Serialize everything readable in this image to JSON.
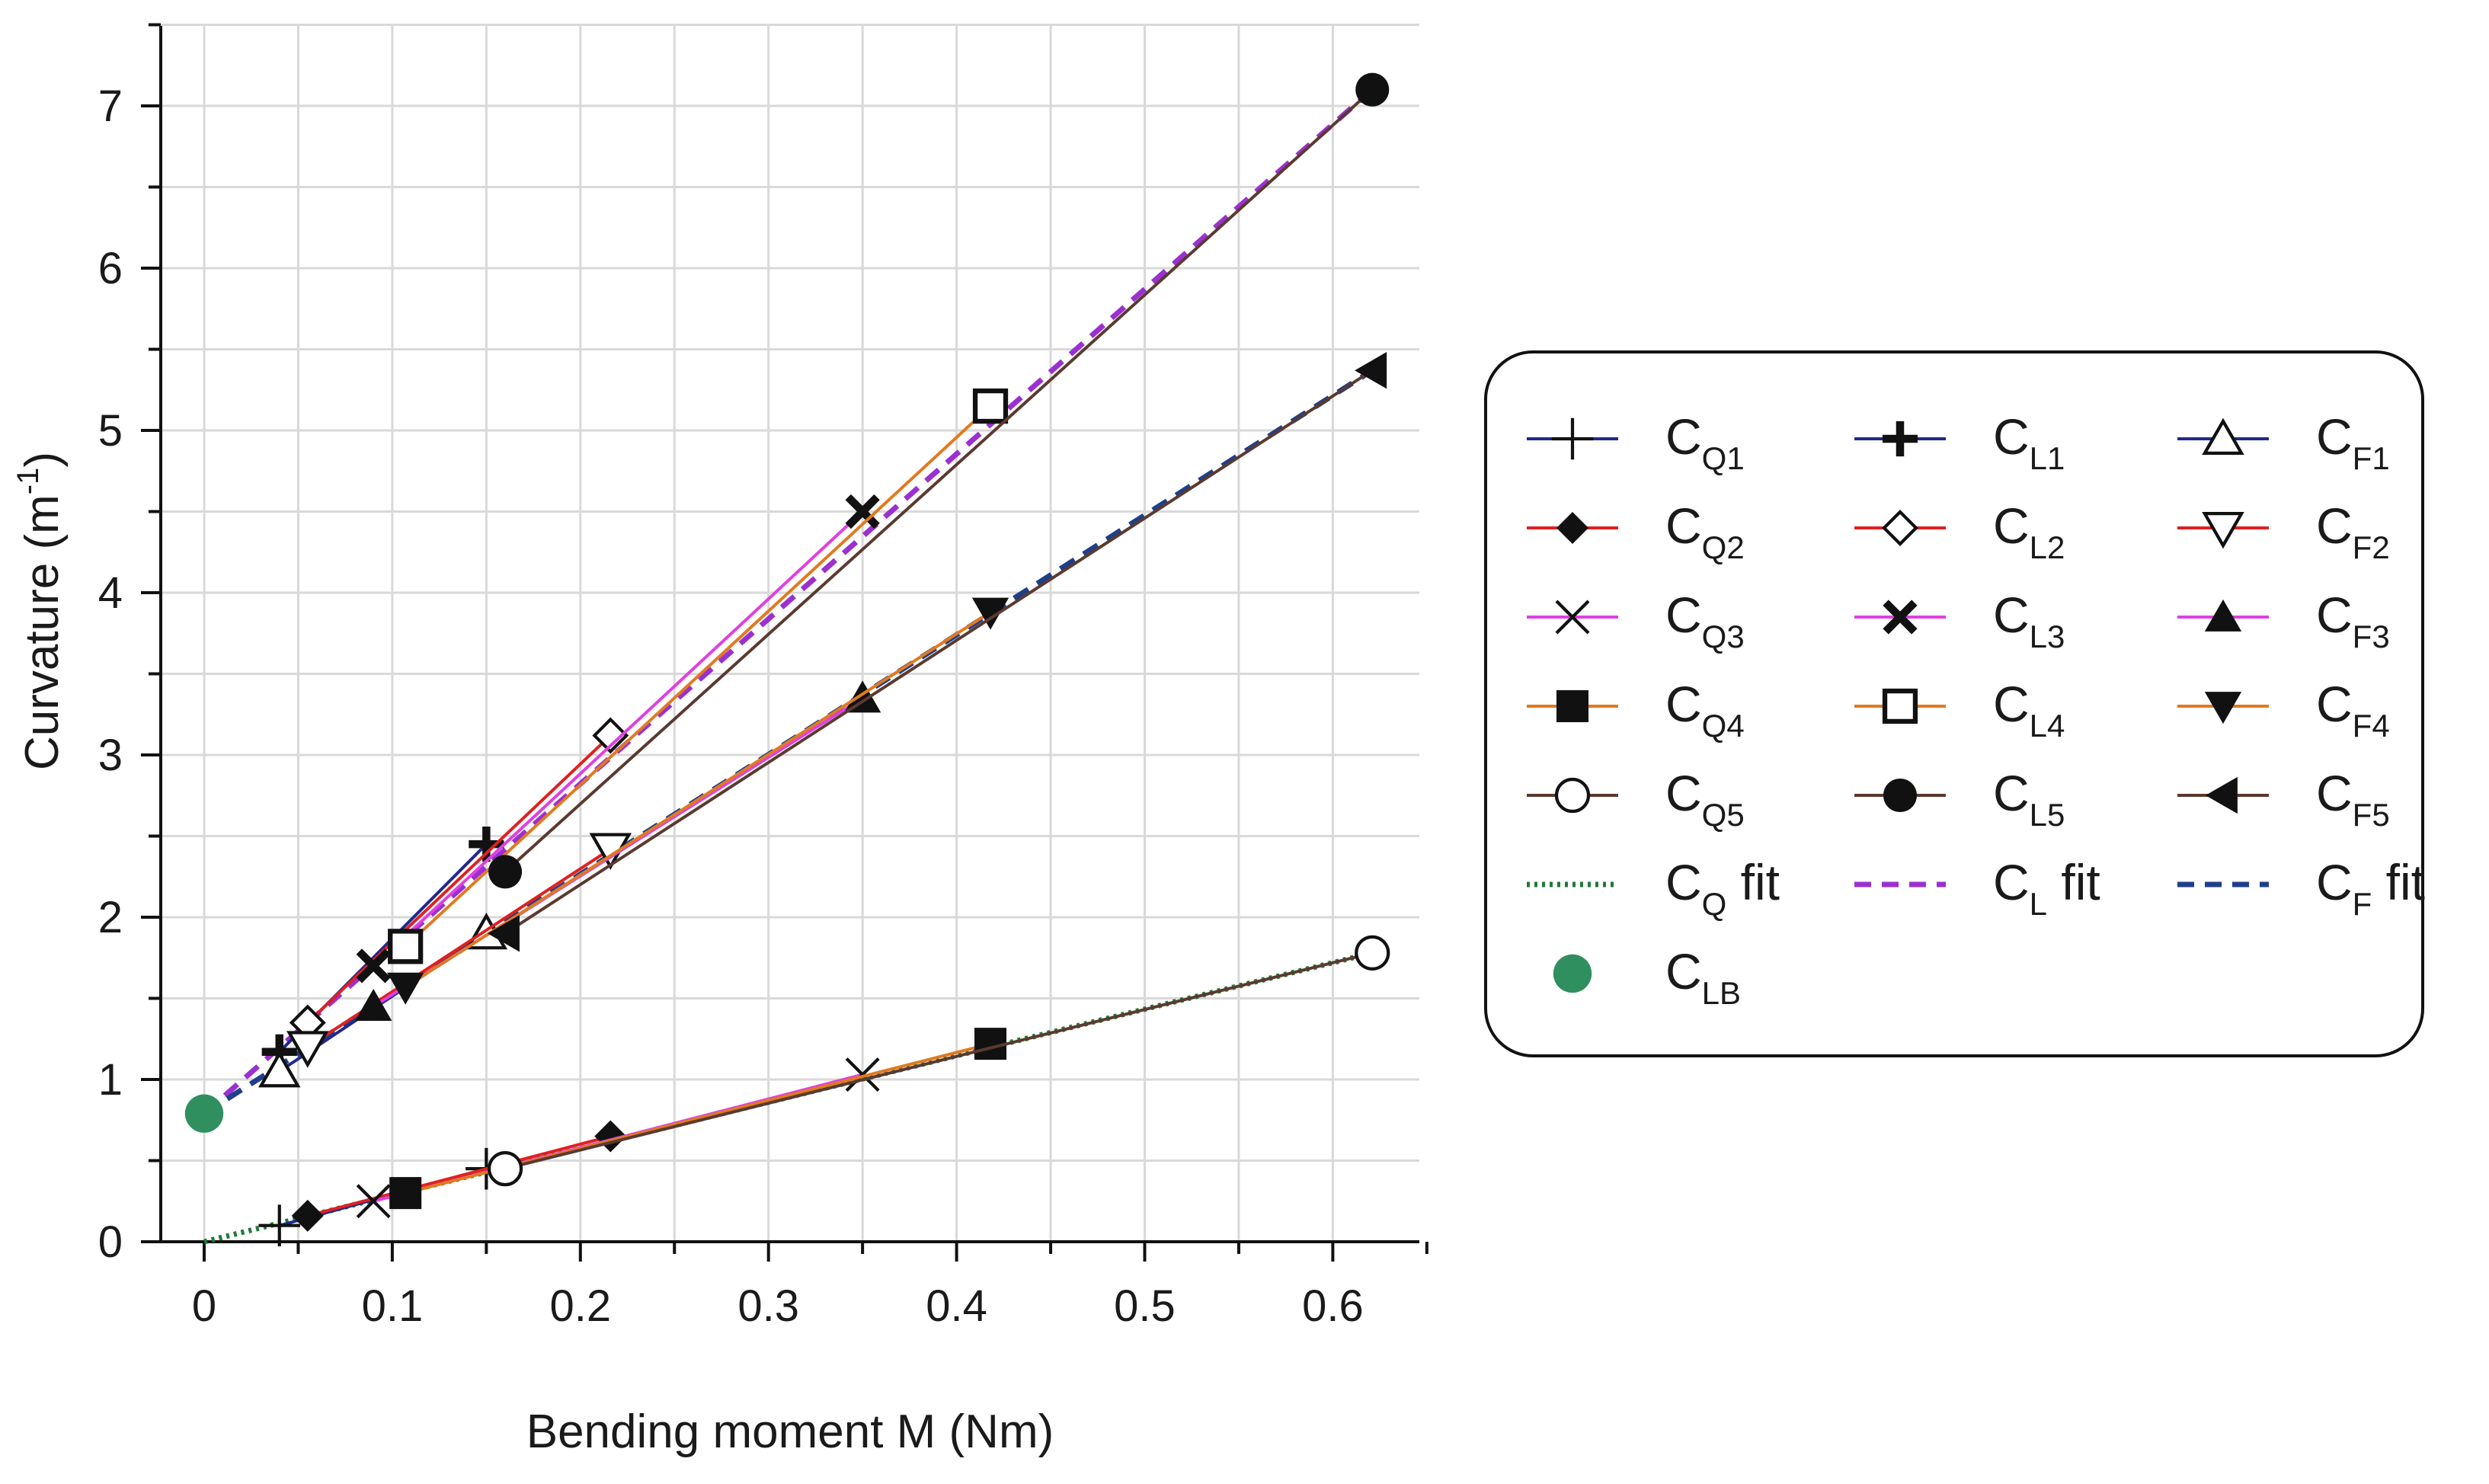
{
  "chart_data": {
    "type": "line",
    "title": "",
    "xlabel": "Bending moment M (Nm)",
    "ylabel_main": "Curvature (m",
    "ylabel_sup": "-1",
    "ylabel_end": ")",
    "xlim": [
      0,
      0.65
    ],
    "ylim": [
      0,
      7.5
    ],
    "xticks": [
      0,
      0.1,
      0.2,
      0.3,
      0.4,
      0.5,
      0.6
    ],
    "xtick_labels": [
      "0",
      "0.1",
      "0.2",
      "0.3",
      "0.4",
      "0.5",
      "0.6"
    ],
    "yticks": [
      0,
      1,
      2,
      3,
      4,
      5,
      6,
      7
    ],
    "ytick_labels": [
      "0",
      "1",
      "2",
      "3",
      "4",
      "5",
      "6",
      "7"
    ],
    "grid": true,
    "legend_position": "right",
    "series": [
      {
        "key": "CQ1",
        "name": "C",
        "sub": "Q1",
        "color": "#1f2a8a",
        "marker": "plus-thin",
        "x": [
          0.04,
          0.15
        ],
        "y": [
          0.1,
          0.45
        ]
      },
      {
        "key": "CQ2",
        "name": "C",
        "sub": "Q2",
        "color": "#e02020",
        "marker": "diamond-filled",
        "x": [
          0.055,
          0.216
        ],
        "y": [
          0.16,
          0.65
        ]
      },
      {
        "key": "CQ3",
        "name": "C",
        "sub": "Q3",
        "color": "#e040e0",
        "marker": "x-thin",
        "x": [
          0.09,
          0.35
        ],
        "y": [
          0.25,
          1.03
        ]
      },
      {
        "key": "CQ4",
        "name": "C",
        "sub": "Q4",
        "color": "#e07a20",
        "marker": "square-filled",
        "x": [
          0.107,
          0.418
        ],
        "y": [
          0.3,
          1.22
        ]
      },
      {
        "key": "CQ5",
        "name": "C",
        "sub": "Q5",
        "color": "#5a3a30",
        "marker": "circle-open",
        "x": [
          0.16,
          0.621
        ],
        "y": [
          0.45,
          1.78
        ]
      },
      {
        "key": "CL1",
        "name": "C",
        "sub": "L1",
        "color": "#1f2a8a",
        "marker": "plus-bold",
        "x": [
          0.04,
          0.15
        ],
        "y": [
          1.17,
          2.45
        ]
      },
      {
        "key": "CL2",
        "name": "C",
        "sub": "L2",
        "color": "#e02020",
        "marker": "diamond-open",
        "x": [
          0.055,
          0.216
        ],
        "y": [
          1.35,
          3.12
        ]
      },
      {
        "key": "CL3",
        "name": "C",
        "sub": "L3",
        "color": "#e040e0",
        "marker": "x-bold",
        "x": [
          0.09,
          0.35
        ],
        "y": [
          1.7,
          4.5
        ]
      },
      {
        "key": "CL4",
        "name": "C",
        "sub": "L4",
        "color": "#e07a20",
        "marker": "square-open",
        "x": [
          0.107,
          0.418
        ],
        "y": [
          1.82,
          5.15
        ]
      },
      {
        "key": "CL5",
        "name": "C",
        "sub": "L5",
        "color": "#5a3a30",
        "marker": "circle-filled",
        "x": [
          0.16,
          0.621
        ],
        "y": [
          2.28,
          7.1
        ]
      },
      {
        "key": "CF1",
        "name": "C",
        "sub": "F1",
        "color": "#1f2a8a",
        "marker": "triangle-up-open",
        "x": [
          0.04,
          0.15
        ],
        "y": [
          1.05,
          1.9
        ]
      },
      {
        "key": "CF2",
        "name": "C",
        "sub": "F2",
        "color": "#e02020",
        "marker": "triangle-down-open",
        "x": [
          0.055,
          0.216
        ],
        "y": [
          1.2,
          2.42
        ]
      },
      {
        "key": "CF3",
        "name": "C",
        "sub": "F3",
        "color": "#e040e0",
        "marker": "triangle-up-filled",
        "x": [
          0.09,
          0.35
        ],
        "y": [
          1.45,
          3.35
        ]
      },
      {
        "key": "CF4",
        "name": "C",
        "sub": "F4",
        "color": "#e07a20",
        "marker": "triangle-down-filled",
        "x": [
          0.107,
          0.418
        ],
        "y": [
          1.57,
          3.88
        ]
      },
      {
        "key": "CF5",
        "name": "C",
        "sub": "F5",
        "color": "#5a3a30",
        "marker": "triangle-left-filled",
        "x": [
          0.16,
          0.621
        ],
        "y": [
          1.9,
          5.37
        ]
      }
    ],
    "fits": [
      {
        "key": "CQfit",
        "name": "C",
        "sub": "Q",
        "suffix": " fit",
        "color": "#1f7a3a",
        "dash": "dotted",
        "x": [
          0,
          0.621
        ],
        "y": [
          0,
          1.78
        ]
      },
      {
        "key": "CLfit",
        "name": "C",
        "sub": "L",
        "suffix": " fit",
        "color": "#9b30d0",
        "dash": "dashed",
        "x": [
          0,
          0.621
        ],
        "y": [
          0.79,
          7.1
        ]
      },
      {
        "key": "CFfit",
        "name": "C",
        "sub": "F",
        "suffix": " fit",
        "color": "#1f3f8a",
        "dash": "dashed",
        "x": [
          0,
          0.621
        ],
        "y": [
          0.79,
          5.37
        ]
      }
    ],
    "point_series": [
      {
        "key": "CLB",
        "name": "C",
        "sub": "LB",
        "color": "#2f8f5f",
        "marker": "circle-big",
        "x": [
          0
        ],
        "y": [
          0.79
        ]
      }
    ]
  }
}
